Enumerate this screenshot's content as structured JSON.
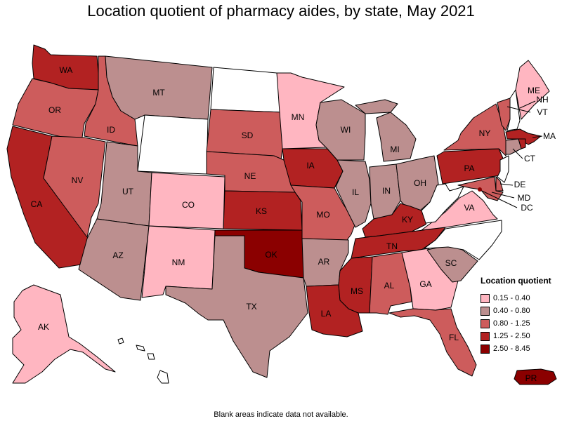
{
  "title": "Location quotient of pharmacy aides, by state, May 2021",
  "footnote": "Blank areas indicate data not available.",
  "legend": {
    "title": "Location quotient",
    "bins": [
      {
        "label": "0.15 - 0.40",
        "color": "#ffb6c1"
      },
      {
        "label": "0.40 - 0.80",
        "color": "#bc8f8f"
      },
      {
        "label": "0.80 - 1.25",
        "color": "#cd5c5c"
      },
      {
        "label": "1.25 - 2.50",
        "color": "#b22222"
      },
      {
        "label": "2.50 - 8.45",
        "color": "#8b0000"
      }
    ],
    "no_data_color": "#ffffff"
  },
  "states": {
    "WA": {
      "label": "WA",
      "bin": 3
    },
    "OR": {
      "label": "OR",
      "bin": 2
    },
    "CA": {
      "label": "CA",
      "bin": 3
    },
    "ID": {
      "label": "ID",
      "bin": 2
    },
    "NV": {
      "label": "NV",
      "bin": 2
    },
    "MT": {
      "label": "MT",
      "bin": 1
    },
    "WY": {
      "label": "",
      "bin": null
    },
    "UT": {
      "label": "UT",
      "bin": 1
    },
    "AZ": {
      "label": "AZ",
      "bin": 1
    },
    "CO": {
      "label": "CO",
      "bin": 0
    },
    "NM": {
      "label": "NM",
      "bin": 0
    },
    "ND": {
      "label": "",
      "bin": null
    },
    "SD": {
      "label": "SD",
      "bin": 2
    },
    "NE": {
      "label": "NE",
      "bin": 2
    },
    "KS": {
      "label": "KS",
      "bin": 3
    },
    "OK": {
      "label": "OK",
      "bin": 4
    },
    "TX": {
      "label": "TX",
      "bin": 1
    },
    "MN": {
      "label": "MN",
      "bin": 0
    },
    "IA": {
      "label": "IA",
      "bin": 3
    },
    "MO": {
      "label": "MO",
      "bin": 2
    },
    "AR": {
      "label": "AR",
      "bin": 1
    },
    "LA": {
      "label": "LA",
      "bin": 3
    },
    "WI": {
      "label": "WI",
      "bin": 1
    },
    "IL": {
      "label": "IL",
      "bin": 1
    },
    "MI": {
      "label": "MI",
      "bin": 1
    },
    "IN": {
      "label": "IN",
      "bin": 1
    },
    "OH": {
      "label": "OH",
      "bin": 1
    },
    "KY": {
      "label": "KY",
      "bin": 3
    },
    "TN": {
      "label": "TN",
      "bin": 3
    },
    "MS": {
      "label": "MS",
      "bin": 3
    },
    "AL": {
      "label": "AL",
      "bin": 2
    },
    "GA": {
      "label": "GA",
      "bin": 0
    },
    "FL": {
      "label": "FL",
      "bin": 2
    },
    "SC": {
      "label": "SC",
      "bin": 1
    },
    "NC": {
      "label": "",
      "bin": null
    },
    "VA": {
      "label": "VA",
      "bin": 0
    },
    "WV": {
      "label": "",
      "bin": null
    },
    "PA": {
      "label": "PA",
      "bin": 3
    },
    "NY": {
      "label": "NY",
      "bin": 2
    },
    "ME": {
      "label": "ME",
      "bin": 0
    },
    "NH": {
      "label": "NH",
      "bin": null
    },
    "VT": {
      "label": "VT",
      "bin": 2
    },
    "MA": {
      "label": "MA",
      "bin": 3
    },
    "CT": {
      "label": "CT",
      "bin": 1
    },
    "RI": {
      "label": "",
      "bin": 3
    },
    "NJ": {
      "label": "",
      "bin": null
    },
    "DE": {
      "label": "DE",
      "bin": 2
    },
    "MD": {
      "label": "MD",
      "bin": 2
    },
    "DC": {
      "label": "DC",
      "bin": 4
    },
    "AK": {
      "label": "AK",
      "bin": 0
    },
    "HI": {
      "label": "",
      "bin": null
    },
    "PR": {
      "label": "PR",
      "bin": 4
    }
  }
}
